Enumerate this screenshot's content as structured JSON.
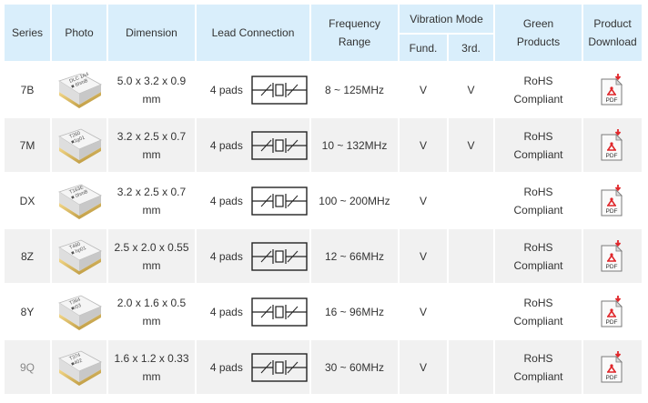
{
  "headers": {
    "series": "Series",
    "photo": "Photo",
    "dimension": "Dimension",
    "lead": "Lead Connection",
    "frequency": [
      "Frequency",
      "Range"
    ],
    "vibration": "Vibration Mode",
    "fund": "Fund.",
    "third": "3rd.",
    "green": [
      "Green",
      "Products"
    ],
    "download": [
      "Product",
      "Download"
    ]
  },
  "rows": [
    {
      "series": "7B",
      "chip_code": [
        "DLC 1A4",
        "■ 6hmB"
      ],
      "dimension": [
        "5.0 x 3.2 x 0.9",
        "mm"
      ],
      "pads": "4 pads",
      "frequency": "8 ~ 125MHz",
      "fund": "V",
      "third": "V",
      "green": [
        "RoHS",
        "Compliant"
      ],
      "pdf": "PDF"
    },
    {
      "series": "7M",
      "chip_code": [
        "T260",
        "■1g01"
      ],
      "dimension": [
        "3.2 x 2.5 x 0.7",
        "mm"
      ],
      "pads": "4 pads",
      "frequency": "10 ~ 132MHz",
      "fund": "V",
      "third": "V",
      "green": [
        "RoHS",
        "Compliant"
      ],
      "pdf": "PDF"
    },
    {
      "series": "DX",
      "chip_code": [
        "T163E",
        "■ 0hmB"
      ],
      "dimension": [
        "3.2 x 2.5 x 0.7",
        "mm"
      ],
      "pads": "4 pads",
      "frequency": "100 ~ 200MHz",
      "fund": "V",
      "third": "",
      "green": [
        "RoHS",
        "Compliant"
      ],
      "pdf": "PDF"
    },
    {
      "series": "8Z",
      "chip_code": [
        "T480",
        "■ hp01"
      ],
      "dimension": [
        "2.5 x 2.0 x 0.55",
        "mm"
      ],
      "pads": "4 pads",
      "frequency": "12 ~ 66MHz",
      "fund": "V",
      "third": "",
      "green": [
        "RoHS",
        "Compliant"
      ],
      "pdf": "PDF"
    },
    {
      "series": "8Y",
      "chip_code": [
        "T364",
        "■r03"
      ],
      "dimension": [
        "2.0 x 1.6 x 0.5",
        "mm"
      ],
      "pads": "4 pads",
      "frequency": "16 ~ 96MHz",
      "fund": "V",
      "third": "",
      "green": [
        "RoHS",
        "Compliant"
      ],
      "pdf": "PDF"
    },
    {
      "series": "9Q",
      "chip_code": [
        "T374",
        "■402"
      ],
      "dimension": [
        "1.6 x 1.2 x 0.33",
        "mm"
      ],
      "pads": "4 pads",
      "frequency": "30 ~ 60MHz",
      "fund": "V",
      "third": "",
      "green": [
        "RoHS",
        "Compliant"
      ],
      "pdf": "PDF"
    }
  ],
  "colors": {
    "header_bg": "#d9eefb",
    "row_alt_bg": "#f1f1f1",
    "pdf_red": "#e0262a"
  },
  "icons": {
    "chip": "crystal-chip-photo",
    "lead": "crystal-symbol-diagram",
    "pdf": "pdf-icon"
  }
}
